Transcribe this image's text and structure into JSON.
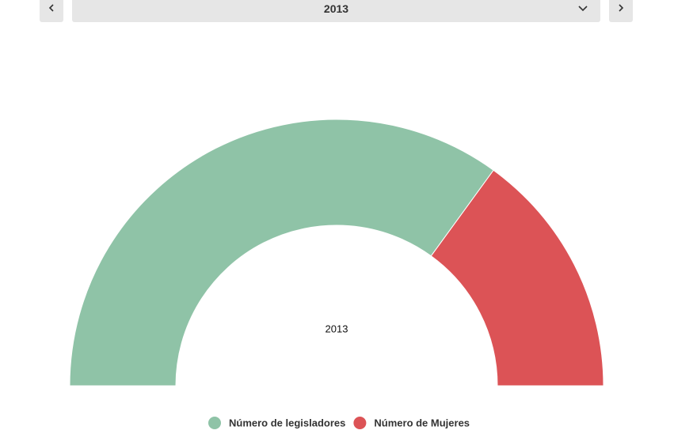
{
  "controls": {
    "selected_year": "2013"
  },
  "chart_data": {
    "type": "semidonut",
    "center_label": "2013",
    "categories": [
      "Número de legisladores",
      "Número de Mujeres"
    ],
    "values": [
      70,
      30
    ],
    "colors": [
      "#8fc3a7",
      "#dc5356"
    ]
  }
}
